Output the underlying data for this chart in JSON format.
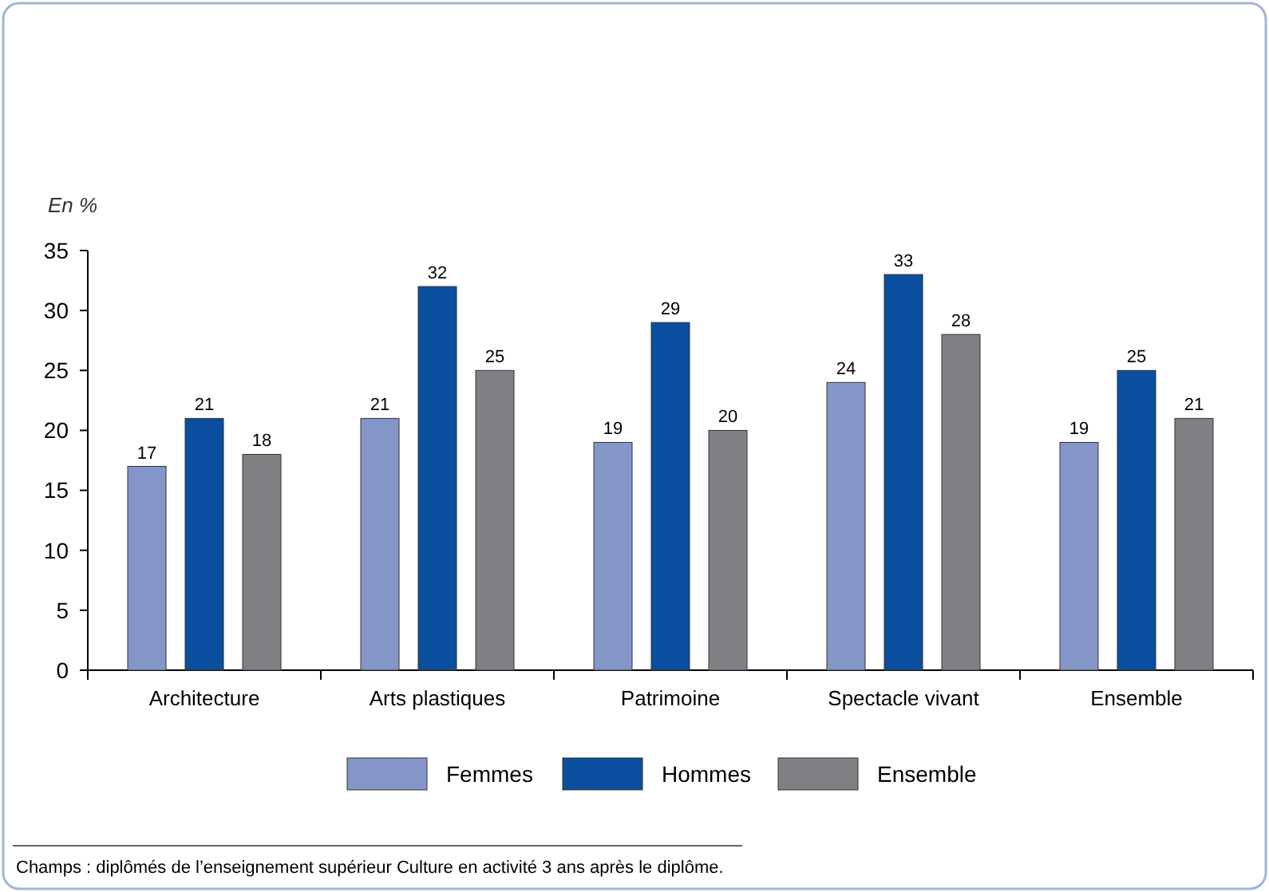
{
  "chart_data": {
    "type": "bar",
    "ylabel": "En %",
    "categories": [
      "Architecture",
      "Arts plastiques",
      "Patrimoine",
      "Spectacle vivant",
      "Ensemble"
    ],
    "series": [
      {
        "name": "Femmes",
        "color": "#8496c8",
        "values": [
          17,
          21,
          19,
          24,
          19
        ]
      },
      {
        "name": "Hommes",
        "color": "#0a4f9e",
        "values": [
          21,
          32,
          29,
          33,
          25
        ]
      },
      {
        "name": "Ensemble",
        "color": "#7f8083",
        "values": [
          18,
          25,
          20,
          28,
          21
        ]
      }
    ],
    "ylim": [
      0,
      35
    ],
    "yticks": [
      0,
      5,
      10,
      15,
      20,
      25,
      30,
      35
    ],
    "data_labels": true,
    "grid": false,
    "legend": "bottom",
    "annotations": [
      "Champs : diplômés de l’enseignement supérieur Culture en activité 3 ans après le diplôme."
    ]
  }
}
